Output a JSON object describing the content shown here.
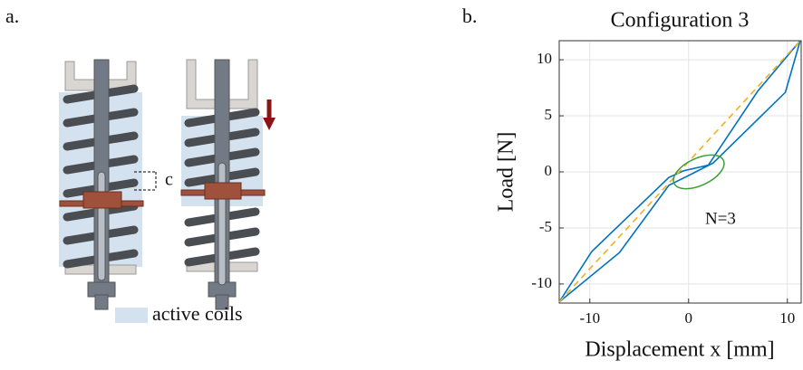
{
  "panel_a": {
    "label": "a.",
    "gap_label": "c",
    "legend": "active coils"
  },
  "chart_data": {
    "type": "line",
    "panel_label": "b.",
    "title": "Configuration 3",
    "x_label": "Displacement x [mm]",
    "y_label": "Load [N]",
    "annotation": "N=3",
    "xlim": [
      -13.1,
      11.4
    ],
    "ylim": [
      -11.7,
      11.7
    ],
    "xticks": [
      -10,
      0,
      10
    ],
    "yticks": [
      -10,
      -5,
      0,
      5,
      10
    ],
    "grid": true,
    "series": [
      {
        "color": "#0072bd",
        "style": "solid",
        "x": [
          -13.1,
          -9.8,
          -2,
          -0.5,
          2,
          7,
          11.3
        ],
        "values": [
          -11.6,
          -7.1,
          -0.5,
          0.1,
          0.6,
          7.2,
          11.7
        ]
      },
      {
        "color": "#0072bd",
        "style": "solid",
        "x": [
          -13.1,
          -7,
          -2,
          0.5,
          2.5,
          9.8,
          11.3
        ],
        "values": [
          -11.6,
          -7.2,
          -1.2,
          -0.1,
          0.8,
          7.1,
          11.7
        ]
      },
      {
        "color": "#edb120",
        "style": "dashed",
        "x": [
          -13.1,
          11.3
        ],
        "values": [
          -11.6,
          11.7
        ]
      }
    ]
  }
}
